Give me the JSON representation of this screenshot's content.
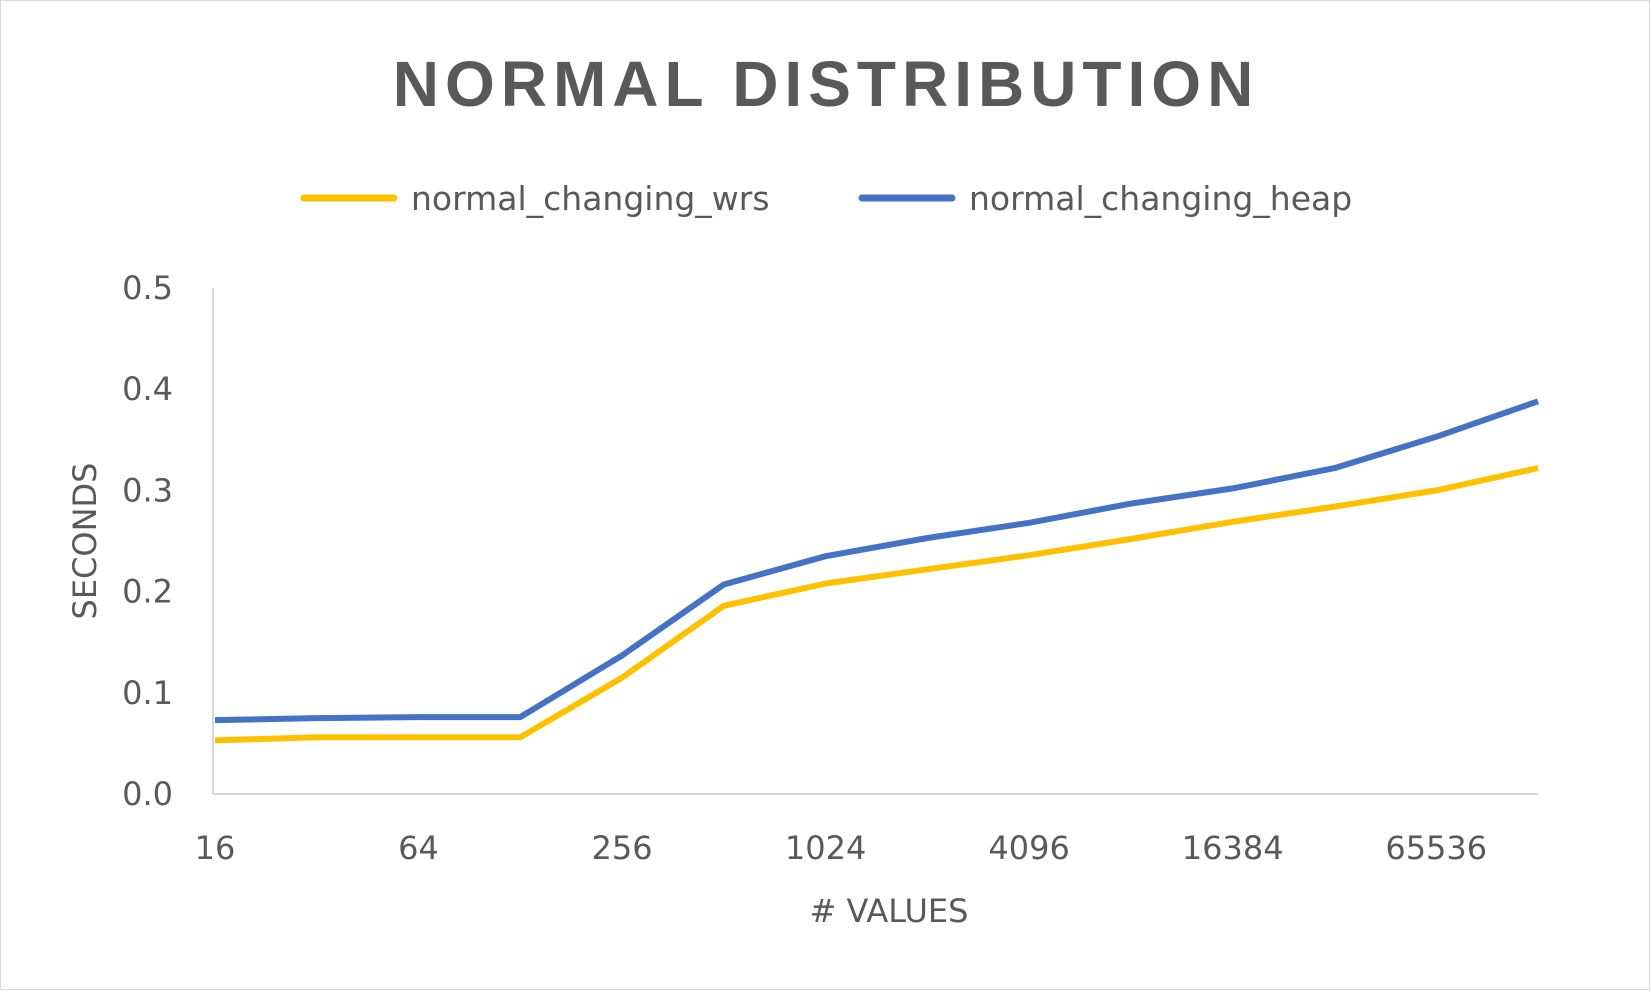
{
  "chart_data": {
    "type": "line",
    "title": "NORMAL DISTRIBUTION",
    "xlabel": "# VALUES",
    "ylabel": "SECONDS",
    "x": [
      16,
      32,
      64,
      128,
      256,
      512,
      1024,
      2048,
      4096,
      8192,
      16384,
      32768,
      65536,
      131072
    ],
    "x_tick_labels": [
      "16",
      "64",
      "256",
      "1024",
      "4096",
      "16384",
      "65536"
    ],
    "x_tick_values": [
      16,
      64,
      256,
      1024,
      4096,
      16384,
      65536
    ],
    "x_scale": "log2",
    "ylim": [
      0,
      0.5
    ],
    "y_ticks": [
      0,
      0.1,
      0.2,
      0.3,
      0.4,
      0.5
    ],
    "y_tick_labels": [
      "0.0",
      "0.1",
      "0.2",
      "0.3",
      "0.4",
      "0.5"
    ],
    "grid": false,
    "legend_position": "top",
    "series": [
      {
        "name": "normal_changing_wrs",
        "color": "#FFC000",
        "values": [
          0.053,
          0.056,
          0.056,
          0.056,
          0.115,
          0.186,
          0.208,
          0.222,
          0.236,
          0.252,
          0.269,
          0.284,
          0.3,
          0.322
        ]
      },
      {
        "name": "normal_changing_heap",
        "color": "#4472C4",
        "values": [
          0.073,
          0.075,
          0.076,
          0.076,
          0.137,
          0.207,
          0.235,
          0.253,
          0.268,
          0.287,
          0.302,
          0.322,
          0.353,
          0.388
        ]
      }
    ]
  }
}
